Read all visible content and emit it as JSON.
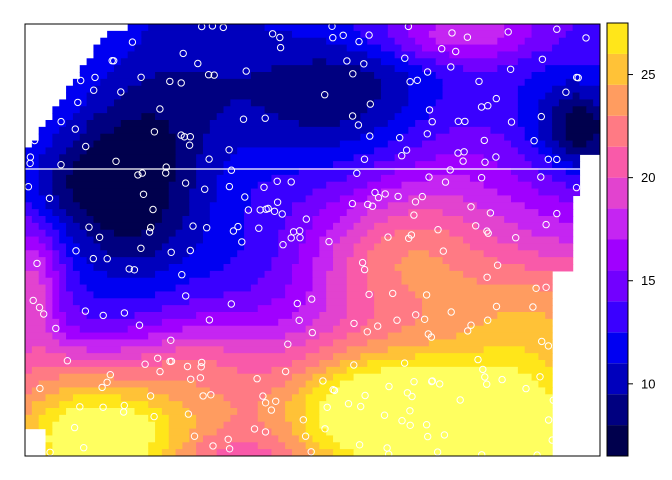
{
  "chart_data": {
    "type": "heatmap",
    "title": "",
    "xlabel": "",
    "ylabel": "",
    "colorbar": {
      "min": 6.5,
      "max": 27.5,
      "ticks": [
        10,
        15,
        20,
        25
      ],
      "tick_labels": [
        "10",
        "15",
        "20",
        "25"
      ],
      "bands": [
        {
          "from": 6.5,
          "to": 8.0,
          "color": "#00004d"
        },
        {
          "from": 8.0,
          "to": 9.5,
          "color": "#000080"
        },
        {
          "from": 9.5,
          "to": 11.0,
          "color": "#0000bd"
        },
        {
          "from": 11.0,
          "to": 12.5,
          "color": "#0000f2"
        },
        {
          "from": 12.5,
          "to": 14.0,
          "color": "#3a00ff"
        },
        {
          "from": 14.0,
          "to": 15.5,
          "color": "#7200ff"
        },
        {
          "from": 15.5,
          "to": 17.0,
          "color": "#a000ff"
        },
        {
          "from": 17.0,
          "to": 18.5,
          "color": "#c525f2"
        },
        {
          "from": 18.5,
          "to": 20.0,
          "color": "#e243cf"
        },
        {
          "from": 20.0,
          "to": 21.5,
          "color": "#f95aa9"
        },
        {
          "from": 21.5,
          "to": 23.0,
          "color": "#ff7a84"
        },
        {
          "from": 23.0,
          "to": 24.5,
          "color": "#ff9c60"
        },
        {
          "from": 24.5,
          "to": 26.0,
          "color": "#ffc237"
        },
        {
          "from": 26.0,
          "to": 27.5,
          "color": "#ffe61a"
        },
        {
          "from": 27.5,
          "to": 29.0,
          "color": "#ffff60"
        }
      ]
    },
    "sample_points_count": 300,
    "grid": false,
    "legend_position": "right"
  }
}
